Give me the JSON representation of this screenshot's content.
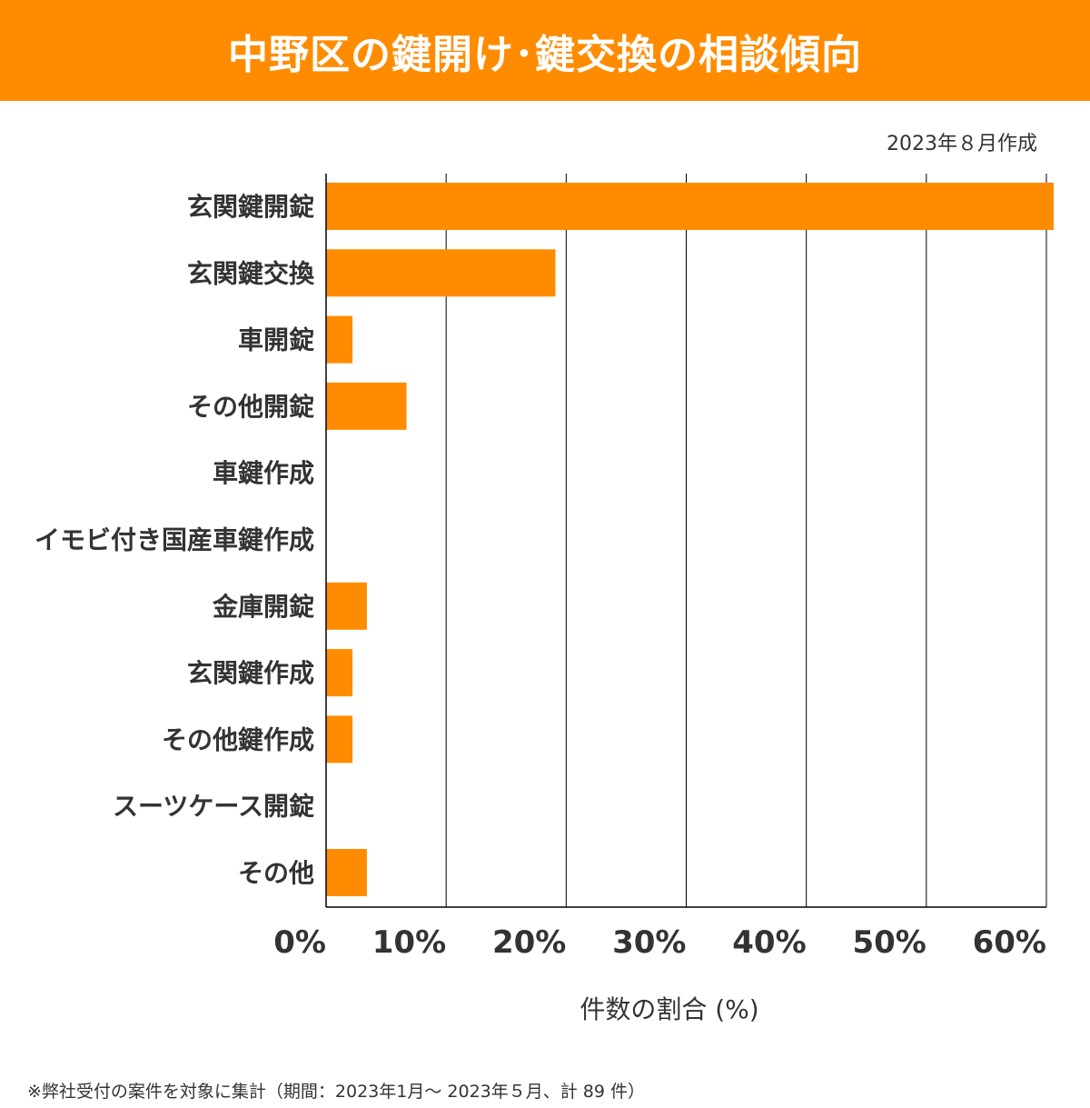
{
  "header": {
    "title": "中野区の鍵開け･鍵交換の相談傾向"
  },
  "date_note": "2023年８月作成",
  "footnote": "※弊社受付の案件を対象に集計（期間：2023年1月～ 2023年５月、計 89 件）",
  "colors": {
    "accent": "#ff8c00",
    "bar": "#ff8c00",
    "text": "#333333",
    "grid": "#000000"
  },
  "chart_data": {
    "type": "bar",
    "orientation": "horizontal",
    "categories": [
      "玄関鍵開錠",
      "玄関鍵交換",
      "車開錠",
      "その他開錠",
      "車鍵作成",
      "イモビ付き国産車鍵作成",
      "金庫開錠",
      "玄関鍵作成",
      "その他鍵作成",
      "スーツケース開錠",
      "その他"
    ],
    "values": [
      60.7,
      19.1,
      2.2,
      6.7,
      0,
      0,
      3.4,
      2.2,
      2.2,
      0,
      3.4
    ],
    "xticks": [
      "0%",
      "10%",
      "20%",
      "30%",
      "40%",
      "50%",
      "60%"
    ],
    "xlim": [
      0,
      60
    ],
    "xlabel": "件数の割合 (%)",
    "grid": "vertical"
  }
}
